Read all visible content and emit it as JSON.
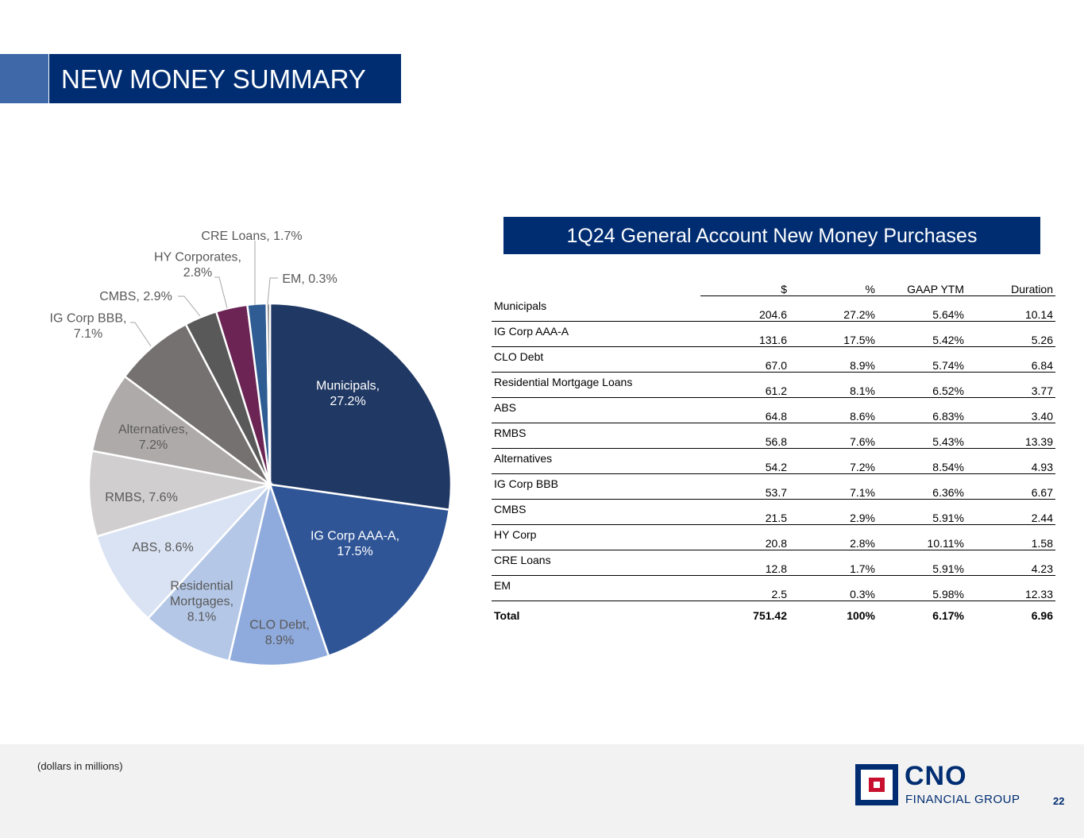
{
  "header": {
    "title": "NEW MONEY SUMMARY"
  },
  "chart_data": {
    "type": "pie",
    "title": "",
    "slices": [
      {
        "label": "Municipals",
        "value": 27.2,
        "label_text": [
          "Municipals,",
          "27.2%"
        ],
        "color": "#203864",
        "text_color": "#ffffff"
      },
      {
        "label": "IG Corp AAA-A",
        "value": 17.5,
        "label_text": [
          "IG Corp AAA-A,",
          "17.5%"
        ],
        "color": "#2f5597",
        "text_color": "#ffffff"
      },
      {
        "label": "CLO Debt",
        "value": 8.9,
        "label_text": [
          "CLO Debt,",
          "8.9%"
        ],
        "color": "#8faadc",
        "text_color": "#595959"
      },
      {
        "label": "Residential Mortgages",
        "value": 8.1,
        "label_text": [
          "Residential",
          "Mortgages,",
          "8.1%"
        ],
        "color": "#b4c7e7",
        "text_color": "#595959"
      },
      {
        "label": "ABS",
        "value": 8.6,
        "label_text": [
          "ABS, 8.6%"
        ],
        "color": "#dae3f3",
        "text_color": "#595959"
      },
      {
        "label": "RMBS",
        "value": 7.6,
        "label_text": [
          "RMBS, 7.6%"
        ],
        "color": "#d0cece",
        "text_color": "#595959"
      },
      {
        "label": "Alternatives",
        "value": 7.2,
        "label_text": [
          "Alternatives,",
          "7.2%"
        ],
        "color": "#aeaaaa",
        "text_color": "#595959"
      },
      {
        "label": "IG Corp BBB",
        "value": 7.1,
        "label_text": [
          "IG Corp BBB,",
          "7.1%"
        ],
        "color": "#767171",
        "text_color": "#595959"
      },
      {
        "label": "CMBS",
        "value": 2.9,
        "label_text": [
          "CMBS, 2.9%"
        ],
        "color": "#595959",
        "text_color": "#595959"
      },
      {
        "label": "HY Corporates",
        "value": 2.8,
        "label_text": [
          "HY Corporates,",
          "2.8%"
        ],
        "color": "#6b2454",
        "text_color": "#595959"
      },
      {
        "label": "CRE Loans",
        "value": 1.7,
        "label_text": [
          "CRE Loans, 1.7%"
        ],
        "color": "#2e5c93",
        "text_color": "#595959"
      },
      {
        "label": "EM",
        "value": 0.3,
        "label_text": [
          "EM, 0.3%"
        ],
        "color": "#7f7f7f",
        "text_color": "#595959"
      }
    ]
  },
  "table": {
    "title": "1Q24 General Account New Money Purchases",
    "headers": [
      "$",
      "%",
      "GAAP YTM",
      "Duration"
    ],
    "rows": [
      {
        "name": "Municipals",
        "dollars": "204.6",
        "pct": "27.2%",
        "ytm": "5.64%",
        "duration": "10.14"
      },
      {
        "name": "IG Corp AAA-A",
        "dollars": "131.6",
        "pct": "17.5%",
        "ytm": "5.42%",
        "duration": "5.26"
      },
      {
        "name": "CLO Debt",
        "dollars": "67.0",
        "pct": "8.9%",
        "ytm": "5.74%",
        "duration": "6.84"
      },
      {
        "name": "Residential Mortgage Loans",
        "dollars": "61.2",
        "pct": "8.1%",
        "ytm": "6.52%",
        "duration": "3.77"
      },
      {
        "name": "ABS",
        "dollars": "64.8",
        "pct": "8.6%",
        "ytm": "6.83%",
        "duration": "3.40"
      },
      {
        "name": "RMBS",
        "dollars": "56.8",
        "pct": "7.6%",
        "ytm": "5.43%",
        "duration": "13.39"
      },
      {
        "name": "Alternatives",
        "dollars": "54.2",
        "pct": "7.2%",
        "ytm": "8.54%",
        "duration": "4.93"
      },
      {
        "name": "IG Corp BBB",
        "dollars": "53.7",
        "pct": "7.1%",
        "ytm": "6.36%",
        "duration": "6.67"
      },
      {
        "name": "CMBS",
        "dollars": "21.5",
        "pct": "2.9%",
        "ytm": "5.91%",
        "duration": "2.44"
      },
      {
        "name": "HY Corp",
        "dollars": "20.8",
        "pct": "2.8%",
        "ytm": "10.11%",
        "duration": "1.58"
      },
      {
        "name": "CRE Loans",
        "dollars": "12.8",
        "pct": "1.7%",
        "ytm": "5.91%",
        "duration": "4.23"
      },
      {
        "name": "EM",
        "dollars": "2.5",
        "pct": "0.3%",
        "ytm": "5.98%",
        "duration": "12.33"
      }
    ],
    "total": {
      "name": "Total",
      "dollars": "751.42",
      "pct": "100%",
      "ytm": "6.17%",
      "duration": "6.96"
    }
  },
  "footer": {
    "note": "(dollars in millions)",
    "logo_name": "CNO",
    "logo_subtitle": "FINANCIAL GROUP",
    "page_number": "22"
  }
}
